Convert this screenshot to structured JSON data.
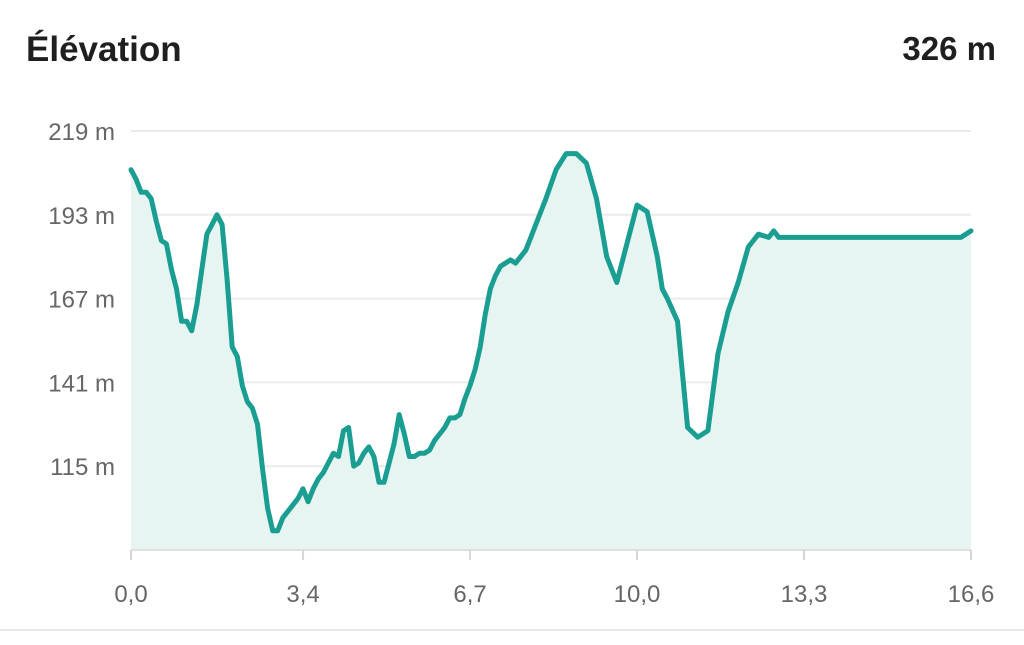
{
  "header": {
    "title": "Élévation",
    "total": "326 m"
  },
  "chart_data": {
    "type": "area",
    "title": "Élévation",
    "xlabel": "",
    "ylabel": "",
    "y_ticks": [
      "219 m",
      "193 m",
      "167 m",
      "141 m",
      "115 m"
    ],
    "y_tick_values": [
      219,
      193,
      167,
      141,
      115
    ],
    "x_ticks": [
      "0,0",
      "3,4",
      "6,7",
      "10,0",
      "13,3",
      "16,6"
    ],
    "x_tick_values": [
      0,
      3.4,
      6.7,
      10.0,
      13.3,
      16.6
    ],
    "xlim": [
      0,
      16.6
    ],
    "ylim": [
      89,
      219
    ],
    "grid": true,
    "colors": {
      "line": "#1a9e92",
      "fill": "#e6f5f2",
      "grid": "#ebebeb",
      "axis": "#e0e0e0"
    },
    "series": [
      {
        "x": [
          0,
          0.1,
          0.2,
          0.3,
          0.4,
          0.5,
          0.6,
          0.7,
          0.8,
          0.9,
          1.0,
          1.1,
          1.2,
          1.3,
          1.4,
          1.5,
          1.6,
          1.7,
          1.8,
          1.9,
          2.0,
          2.1,
          2.2,
          2.3,
          2.4,
          2.5,
          2.6,
          2.7,
          2.8,
          2.9,
          3.0,
          3.1,
          3.2,
          3.3,
          3.4,
          3.5,
          3.6,
          3.7,
          3.8,
          3.9,
          4.0,
          4.1,
          4.2,
          4.3,
          4.4,
          4.5,
          4.6,
          4.7,
          4.8,
          4.9,
          5.0,
          5.1,
          5.2,
          5.3,
          5.4,
          5.5,
          5.6,
          5.7,
          5.8,
          5.9,
          6.0,
          6.1,
          6.2,
          6.3,
          6.4,
          6.5,
          6.6,
          6.7,
          6.8,
          6.9,
          7.0,
          7.1,
          7.2,
          7.3,
          7.4,
          7.5,
          7.6,
          7.7,
          7.8,
          7.9,
          8.0,
          8.2,
          8.4,
          8.6,
          8.8,
          9.0,
          9.2,
          9.4,
          9.6,
          9.8,
          10.0,
          10.2,
          10.4,
          10.5,
          10.6,
          10.8,
          11.0,
          11.2,
          11.4,
          11.6,
          11.8,
          12.0,
          12.2,
          12.4,
          12.6,
          12.7,
          12.8,
          13.0,
          13.2,
          13.3,
          13.4,
          13.6,
          13.8,
          14.0,
          14.2,
          14.4,
          14.5,
          14.6,
          14.8,
          15.0,
          15.2,
          15.4,
          15.6,
          15.8,
          16.0,
          16.2,
          16.4,
          16.6
        ],
        "y": [
          207,
          204,
          200,
          200,
          198,
          191,
          185,
          184,
          176,
          170,
          160,
          160,
          157,
          165,
          176,
          187,
          190,
          193,
          190,
          173,
          152,
          149,
          140,
          135,
          133,
          128,
          114,
          102,
          95,
          95,
          99,
          101,
          103,
          105,
          108,
          104,
          108,
          111,
          113,
          116,
          119,
          118,
          126,
          127,
          115,
          116,
          119,
          121,
          118,
          110,
          110,
          116,
          122,
          131,
          125,
          118,
          118,
          119,
          119,
          120,
          123,
          125,
          127,
          130,
          130,
          131,
          136,
          140,
          145,
          152,
          162,
          170,
          174,
          177,
          178,
          179,
          178,
          180,
          182,
          186,
          190,
          198,
          207,
          212,
          212,
          209,
          198,
          180,
          172,
          184,
          196,
          194,
          180,
          170,
          167,
          160,
          127,
          124,
          126,
          150,
          163,
          172,
          183,
          187,
          186,
          188,
          186,
          186,
          186,
          186,
          186,
          186,
          186,
          186,
          186,
          186,
          186,
          186,
          186,
          186,
          186,
          186,
          186,
          186,
          186,
          186,
          186,
          188
        ]
      }
    ]
  }
}
